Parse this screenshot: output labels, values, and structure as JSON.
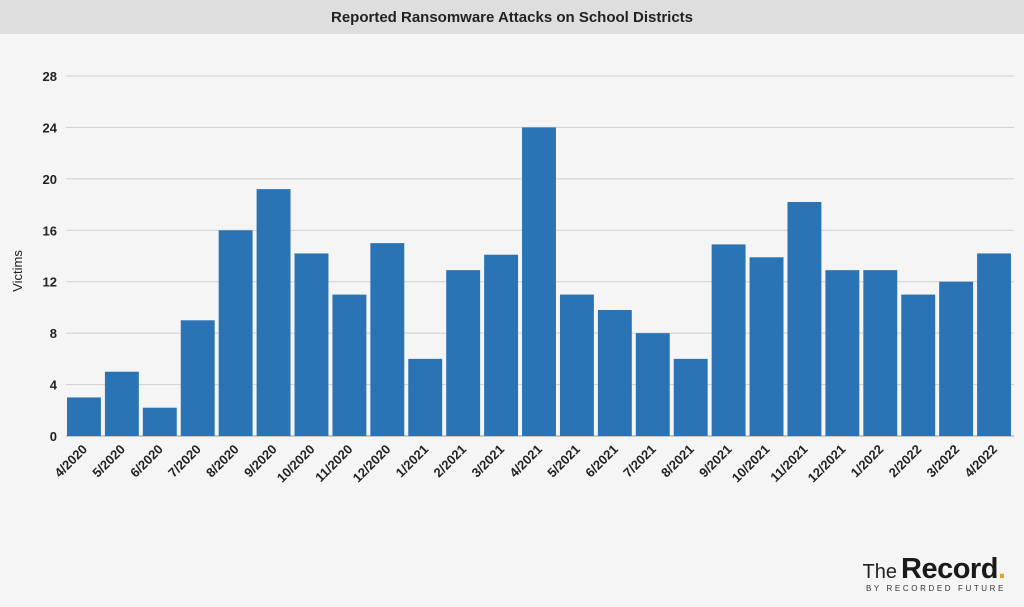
{
  "title": "Reported Ransomware Attacks on School Districts",
  "brand": {
    "name_prefix": "The",
    "name_main": "Record",
    "name_dot": ".",
    "tagline": "BY RECORDED FUTURE",
    "accent_color": "#e2a431"
  },
  "chart_data": {
    "type": "bar",
    "title": "Reported Ransomware Attacks on School Districts",
    "xlabel": "",
    "ylabel": "Victims",
    "ylim": [
      0,
      28
    ],
    "yticks": [
      0,
      4,
      8,
      12,
      16,
      20,
      24,
      28
    ],
    "grid": true,
    "bar_color": "#2a74b5",
    "categories": [
      "4/2020",
      "5/2020",
      "6/2020",
      "7/2020",
      "8/2020",
      "9/2020",
      "10/2020",
      "11/2020",
      "12/2020",
      "1/2021",
      "2/2021",
      "3/2021",
      "4/2021",
      "5/2021",
      "6/2021",
      "7/2021",
      "8/2021",
      "9/2021",
      "10/2021",
      "11/2021",
      "12/2021",
      "1/2022",
      "2/2022",
      "3/2022",
      "4/2022"
    ],
    "values": [
      3,
      5,
      2.2,
      9,
      16,
      19.2,
      14.2,
      11,
      15,
      6,
      12.9,
      14.1,
      24,
      11,
      9.8,
      8,
      6,
      14.9,
      13.9,
      18.2,
      12.9,
      12.9,
      11,
      12,
      14.2
    ]
  }
}
